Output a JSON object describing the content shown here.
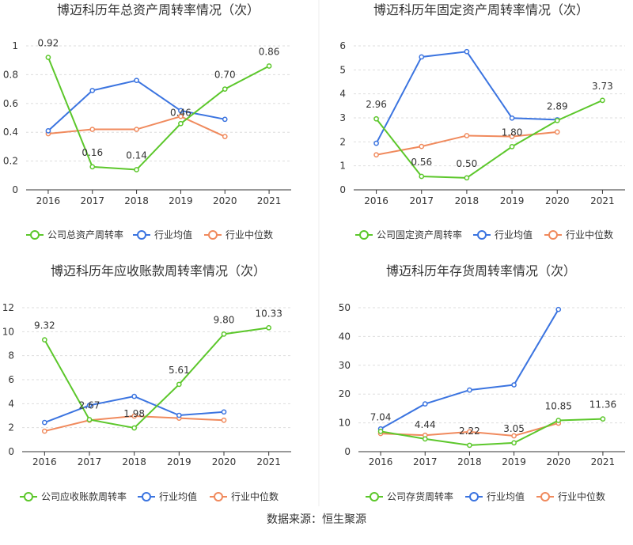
{
  "colors": {
    "company": "#5cc72b",
    "avg": "#3b74e0",
    "median": "#f08a5d",
    "axis": "#333333",
    "grid": "#dddddd",
    "label": "#333333"
  },
  "legend": {
    "avg": "行业均值",
    "median": "行业中位数"
  },
  "source": "数据来源：恒生聚源",
  "chart_data": [
    {
      "type": "line",
      "title": "博迈科历年总资产周转率情况（次）",
      "categories": [
        "2016",
        "2017",
        "2018",
        "2019",
        "2020",
        "2021"
      ],
      "ylim": [
        0,
        1
      ],
      "yticks": [
        0,
        0.2,
        0.4,
        0.6,
        0.8,
        1
      ],
      "ytick_labels": [
        "0",
        "0.2",
        "0.4",
        "0.6",
        "0.8",
        "1"
      ],
      "series": [
        {
          "key": "company",
          "name": "公司总资产周转率",
          "values": [
            0.92,
            0.16,
            0.14,
            0.46,
            0.7,
            0.86
          ],
          "labels": [
            "0.92",
            "0.16",
            "0.14",
            "0.46",
            "0.70",
            "0.86"
          ]
        },
        {
          "key": "avg",
          "name": "行业均值",
          "values": [
            0.41,
            0.69,
            0.76,
            0.55,
            0.49,
            null
          ]
        },
        {
          "key": "median",
          "name": "行业中位数",
          "values": [
            0.39,
            0.42,
            0.42,
            0.51,
            0.37,
            null
          ]
        }
      ]
    },
    {
      "type": "line",
      "title": "博迈科历年固定资产周转率情况（次）",
      "categories": [
        "2016",
        "2017",
        "2018",
        "2019",
        "2020",
        "2021"
      ],
      "ylim": [
        0,
        6
      ],
      "yticks": [
        0,
        1,
        2,
        3,
        4,
        5,
        6
      ],
      "ytick_labels": [
        "0",
        "1",
        "2",
        "3",
        "4",
        "5",
        "6"
      ],
      "series": [
        {
          "key": "company",
          "name": "公司固定资产周转率",
          "values": [
            2.96,
            0.56,
            0.5,
            1.8,
            2.89,
            3.73
          ],
          "labels": [
            "2.96",
            "0.56",
            "0.50",
            "1.80",
            "2.89",
            "3.73"
          ]
        },
        {
          "key": "avg",
          "name": "行业均值",
          "values": [
            1.94,
            5.54,
            5.76,
            2.99,
            2.92,
            null
          ]
        },
        {
          "key": "median",
          "name": "行业中位数",
          "values": [
            1.46,
            1.81,
            2.26,
            2.22,
            2.41,
            null
          ]
        }
      ]
    },
    {
      "type": "line",
      "title": "博迈科历年应收账款周转率情况（次）",
      "categories": [
        "2016",
        "2017",
        "2018",
        "2019",
        "2020",
        "2021"
      ],
      "ylim": [
        0,
        12
      ],
      "yticks": [
        0,
        2,
        4,
        6,
        8,
        10,
        12
      ],
      "ytick_labels": [
        "0",
        "2",
        "4",
        "6",
        "8",
        "10",
        "12"
      ],
      "series": [
        {
          "key": "company",
          "name": "公司应收账款周转率",
          "values": [
            9.32,
            2.67,
            1.98,
            5.61,
            9.8,
            10.33
          ],
          "labels": [
            "9.32",
            "2.67",
            "1.98",
            "5.61",
            "9.80",
            "10.33"
          ]
        },
        {
          "key": "avg",
          "name": "行业均值",
          "values": [
            2.43,
            3.86,
            4.61,
            3.03,
            3.31,
            null
          ]
        },
        {
          "key": "median",
          "name": "行业中位数",
          "values": [
            1.71,
            2.62,
            2.97,
            2.79,
            2.62,
            null
          ]
        }
      ]
    },
    {
      "type": "line",
      "title": "博迈科历年存货周转率情况（次）",
      "categories": [
        "2016",
        "2017",
        "2018",
        "2019",
        "2020",
        "2021"
      ],
      "ylim": [
        0,
        50
      ],
      "yticks": [
        0,
        10,
        20,
        30,
        40,
        50
      ],
      "ytick_labels": [
        "0",
        "10",
        "20",
        "30",
        "40",
        "50"
      ],
      "series": [
        {
          "key": "company",
          "name": "公司存货周转率",
          "values": [
            7.04,
            4.44,
            2.22,
            3.05,
            10.85,
            11.36
          ],
          "labels": [
            "7.04",
            "4.44",
            "2.22",
            "3.05",
            "10.85",
            "11.36"
          ]
        },
        {
          "key": "avg",
          "name": "行业均值",
          "values": [
            7.9,
            16.6,
            21.4,
            23.2,
            49.4,
            null
          ]
        },
        {
          "key": "median",
          "name": "行业中位数",
          "values": [
            6.3,
            5.7,
            6.9,
            5.5,
            9.9,
            null
          ]
        }
      ]
    }
  ]
}
